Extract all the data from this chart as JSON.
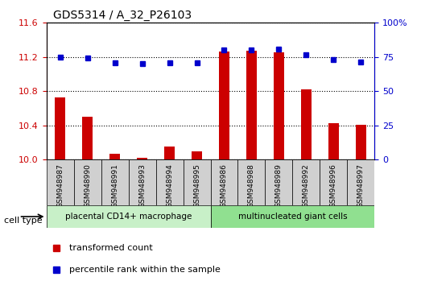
{
  "title": "GDS5314 / A_32_P26103",
  "samples": [
    "GSM948987",
    "GSM948990",
    "GSM948991",
    "GSM948993",
    "GSM948994",
    "GSM948995",
    "GSM948986",
    "GSM948988",
    "GSM948989",
    "GSM948992",
    "GSM948996",
    "GSM948997"
  ],
  "transformed_count": [
    10.73,
    10.5,
    10.07,
    10.02,
    10.15,
    10.1,
    11.26,
    11.27,
    11.25,
    10.82,
    10.43,
    10.41
  ],
  "percentile_rank": [
    75.0,
    74.5,
    70.5,
    70.0,
    71.0,
    71.0,
    80.0,
    80.0,
    80.5,
    76.5,
    73.0,
    71.5
  ],
  "ylim_left": [
    10.0,
    11.6
  ],
  "ylim_right": [
    0,
    100
  ],
  "yticks_left": [
    10.0,
    10.4,
    10.8,
    11.2,
    11.6
  ],
  "yticks_right": [
    0,
    25,
    50,
    75,
    100
  ],
  "ytick_right_labels": [
    "0",
    "25",
    "50",
    "75",
    "100%"
  ],
  "group1_label": "placental CD14+ macrophage",
  "group2_label": "multinucleated giant cells",
  "group1_indices": [
    0,
    1,
    2,
    3,
    4,
    5
  ],
  "group2_indices": [
    6,
    7,
    8,
    9,
    10,
    11
  ],
  "bar_color": "#cc0000",
  "dot_color": "#0000cc",
  "group1_bg": "#c8f0c8",
  "group2_bg": "#90e090",
  "sample_bg": "#d0d0d0",
  "legend_bar_label": "transformed count",
  "legend_dot_label": "percentile rank within the sample",
  "cell_type_label": "cell type"
}
